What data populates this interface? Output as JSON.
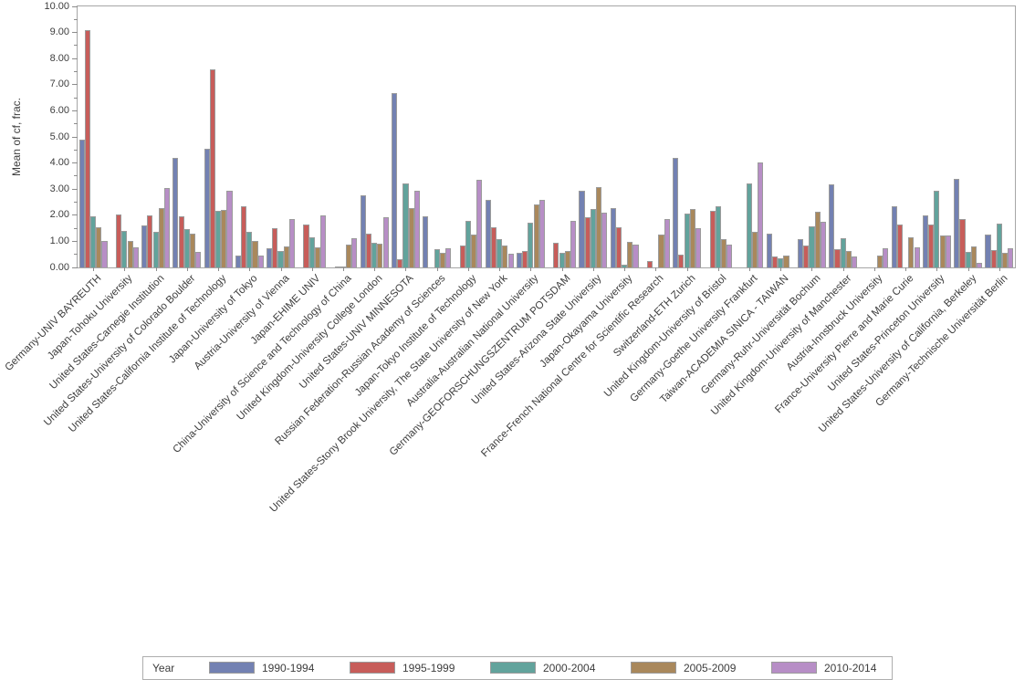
{
  "chart_data": {
    "type": "bar",
    "title": "",
    "ylabel": "Mean of cf, frac.",
    "xlabel": "",
    "ylim": [
      0,
      10
    ],
    "yticks": [
      0,
      1,
      2,
      3,
      4,
      5,
      6,
      7,
      8,
      9,
      10
    ],
    "ytick_labels": [
      "0.00",
      "1.00",
      "2.00",
      "3.00",
      "4.00",
      "5.00",
      "6.00",
      "7.00",
      "8.00",
      "9.00",
      "10.00"
    ],
    "grid": false,
    "legend_position": "bottom",
    "legend_title": "Year",
    "bar_border_color": "#9b9b9b",
    "categories": [
      "Germany-UNIV BAYREUTH",
      "Japan-Tohoku University",
      "United States-Carnegie Institution",
      "United States-University of Colorado Boulder",
      "United States-California Institute of Technology",
      "Japan-University of Tokyo",
      "Austria-University of Vienna",
      "Japan-EHIME UNIV",
      "China-University of Science and Technology of China",
      "United Kingdom-University College London",
      "United States-UNIV MINNESOTA",
      "Russian Federation-Russian Academy of Sciences",
      "Japan-Tokyo Institute of Technology",
      "United States-Stony Brook University, The State University of New York",
      "Australia-Australian National University",
      "Germany-GEOFORSCHUNGSZENTRUM POTSDAM",
      "United States-Arizona State University",
      "Japan-Okayama University",
      "France-French National Centre for Scientific Research",
      "Switzerland-ETH Zurich",
      "United Kingdom-University of Bristol",
      "Germany-Goethe University Frankfurt",
      "Taiwan-ACADEMIA SINICA - TAIWAN",
      "Germany-Ruhr-Universität Bochum",
      "United Kingdom-University of Manchester",
      "Austria-Innsbruck University",
      "France-University Pierre and Marie Curie",
      "United States-Princeton University",
      "United States-University of California, Berkeley",
      "Germany-Technische Universität Berlin"
    ],
    "series": [
      {
        "name": "1990-1994",
        "color": "#7381b2",
        "values": [
          4.9,
          null,
          1.6,
          4.18,
          4.55,
          0.45,
          0.72,
          null,
          null,
          2.77,
          6.67,
          1.96,
          null,
          2.57,
          0.56,
          null,
          2.94,
          2.28,
          null,
          4.19,
          null,
          null,
          1.3,
          1.07,
          3.18,
          null,
          2.33,
          2.0,
          3.39,
          1.27
        ]
      },
      {
        "name": "1995-1999",
        "color": "#c75d5a",
        "values": [
          9.1,
          2.02,
          1.98,
          1.95,
          7.58,
          2.33,
          1.52,
          1.63,
          0.05,
          1.3,
          0.33,
          null,
          0.85,
          1.55,
          0.62,
          0.95,
          1.91,
          1.54,
          0.26,
          0.48,
          2.16,
          null,
          0.41,
          0.85,
          0.69,
          null,
          1.63,
          1.63,
          1.87,
          0.68
        ]
      },
      {
        "name": "2000-2004",
        "color": "#62a39c",
        "values": [
          1.95,
          1.39,
          1.35,
          1.48,
          2.17,
          1.36,
          0.63,
          1.16,
          0.05,
          0.95,
          3.21,
          0.71,
          1.8,
          1.1,
          1.7,
          0.57,
          2.25,
          0.1,
          null,
          2.06,
          2.33,
          3.22,
          0.34,
          1.58,
          1.13,
          null,
          null,
          2.93,
          0.58,
          1.69
        ]
      },
      {
        "name": "2005-2009",
        "color": "#a9885c",
        "values": [
          1.55,
          1.02,
          2.26,
          1.31,
          2.21,
          1.0,
          0.81,
          0.78,
          0.87,
          0.9,
          2.26,
          0.55,
          1.26,
          0.85,
          2.42,
          0.63,
          3.08,
          0.98,
          1.25,
          2.24,
          1.07,
          1.38,
          0.47,
          2.13,
          0.63,
          0.45,
          1.15,
          1.21,
          0.81,
          0.57
        ]
      },
      {
        "name": "2010-2014",
        "color": "#b78ec6",
        "values": [
          1.0,
          0.77,
          3.05,
          0.6,
          2.94,
          0.46,
          1.84,
          1.98,
          1.13,
          1.93,
          2.93,
          0.74,
          3.35,
          0.52,
          2.57,
          1.8,
          2.11,
          0.86,
          1.86,
          1.51,
          0.87,
          4.02,
          null,
          1.74,
          0.41,
          0.74,
          0.78,
          1.21,
          0.16,
          0.75
        ]
      }
    ]
  }
}
